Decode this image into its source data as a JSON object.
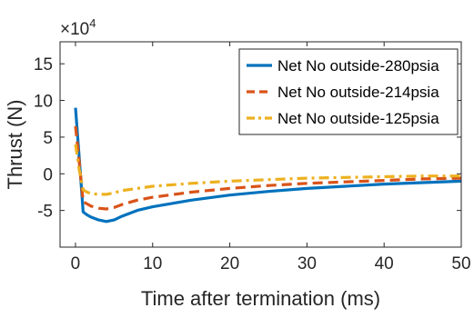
{
  "chart_data": {
    "type": "line",
    "title": "",
    "xlabel": "Time after termination (ms)",
    "ylabel": "Thrust (N)",
    "y_multiplier": {
      "base": "×10",
      "exponent": "4"
    },
    "xlim": [
      -2,
      50
    ],
    "ylim": [
      -10,
      18
    ],
    "x_ticks": [
      0,
      10,
      20,
      30,
      40,
      50
    ],
    "x_tick_labels": [
      "0",
      "10",
      "20",
      "30",
      "40",
      "50"
    ],
    "y_ticks": [
      -5,
      0,
      5,
      10,
      15
    ],
    "y_tick_labels": [
      "-5",
      "0",
      "5",
      "10",
      "15"
    ],
    "grid": false,
    "legend_position": "top-right",
    "series": [
      {
        "name": "Net No outside-280psia",
        "color": "#0072BD",
        "dash": "solid",
        "x": [
          0,
          0.5,
          1,
          1.5,
          2,
          3,
          4,
          5,
          6,
          8,
          10,
          15,
          20,
          25,
          30,
          35,
          40,
          45,
          50
        ],
        "y": [
          9,
          2,
          -5.2,
          -5.6,
          -5.9,
          -6.3,
          -6.5,
          -6.3,
          -5.8,
          -5.0,
          -4.5,
          -3.6,
          -2.9,
          -2.4,
          -2.0,
          -1.7,
          -1.4,
          -1.2,
          -1.0
        ]
      },
      {
        "name": "Net No outside-214psia",
        "color": "#D95319",
        "dash": "dashed",
        "x": [
          0,
          0.5,
          1,
          1.5,
          2,
          3,
          4,
          5,
          6,
          8,
          10,
          15,
          20,
          25,
          30,
          35,
          40,
          45,
          50
        ],
        "y": [
          6.5,
          1.5,
          -3.8,
          -4.1,
          -4.4,
          -4.7,
          -4.8,
          -4.6,
          -4.2,
          -3.6,
          -3.2,
          -2.5,
          -2.0,
          -1.6,
          -1.3,
          -1.1,
          -0.9,
          -0.7,
          -0.6
        ]
      },
      {
        "name": "Net No outside-125psia",
        "color": "#EDB120",
        "dash": "dashdot",
        "x": [
          0,
          0.5,
          1,
          1.5,
          2,
          3,
          4,
          5,
          6,
          8,
          10,
          15,
          20,
          25,
          30,
          35,
          40,
          45,
          50
        ],
        "y": [
          4,
          0.5,
          -2.2,
          -2.5,
          -2.7,
          -2.8,
          -2.8,
          -2.6,
          -2.3,
          -2.0,
          -1.7,
          -1.3,
          -1.0,
          -0.8,
          -0.6,
          -0.5,
          -0.4,
          -0.3,
          -0.3
        ]
      }
    ]
  }
}
